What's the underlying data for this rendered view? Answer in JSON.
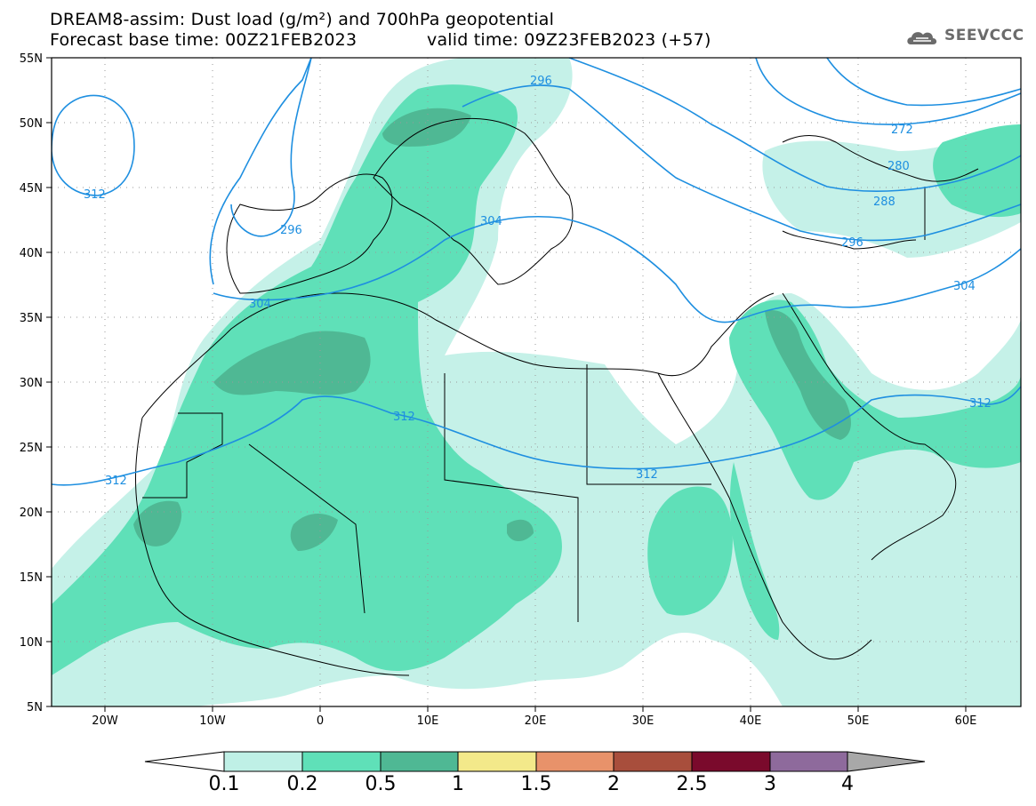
{
  "title": {
    "line1": "DREAM8-assim: Dust load (g/m²) and 700hPa geopotential",
    "line2a": "Forecast base time: 00Z21FEB2023",
    "line2b": "valid time: 09Z23FEB2023 (+57)"
  },
  "logo": {
    "text": "SEEVCCC",
    "icon": "cloud-logo-icon"
  },
  "axes": {
    "lat_labels": [
      "55N",
      "50N",
      "45N",
      "40N",
      "35N",
      "30N",
      "25N",
      "20N",
      "15N",
      "10N",
      "5N"
    ],
    "lon_labels": [
      "20W",
      "10W",
      "0",
      "10E",
      "20E",
      "30E",
      "40E",
      "50E",
      "60E"
    ]
  },
  "contour_labels": [
    "312",
    "296",
    "304",
    "296",
    "272",
    "280",
    "288",
    "296",
    "304",
    "304",
    "312",
    "312",
    "312",
    "312"
  ],
  "colorbar": {
    "labels": [
      "0.1",
      "0.2",
      "0.5",
      "1",
      "1.5",
      "2",
      "2.5",
      "3",
      "4"
    ],
    "colors": [
      "#ffffff",
      "#bff0e6",
      "#5fe0b8",
      "#4fb894",
      "#f3e98a",
      "#e8926a",
      "#a84e3c",
      "#7a0a2c",
      "#8e6a9c",
      "#a8a8a8"
    ]
  },
  "colors": {
    "dust_light": "#c5f1e8",
    "dust_mid": "#5fe0b8",
    "dust_dark": "#4fb894",
    "contour": "#1e8fe0",
    "coast": "#000000"
  }
}
